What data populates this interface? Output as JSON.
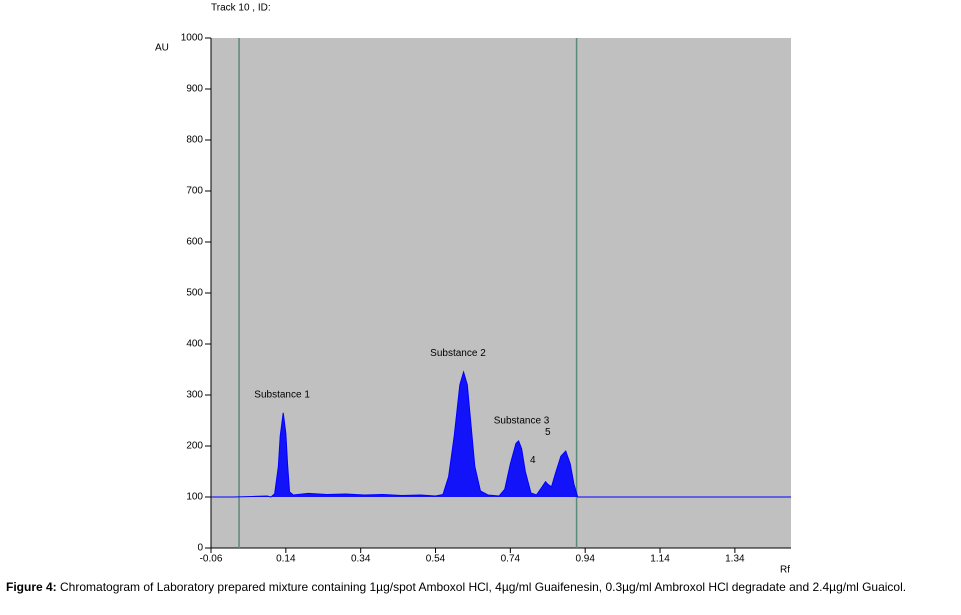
{
  "chart_data": {
    "type": "line",
    "title": "Track  10 , ID:",
    "y_label": "AU",
    "x_label": "Rf",
    "x": [
      -0.06,
      0.0,
      0.05,
      0.09,
      0.1,
      0.11,
      0.12,
      0.125,
      0.133,
      0.14,
      0.145,
      0.15,
      0.16,
      0.2,
      0.25,
      0.3,
      0.35,
      0.4,
      0.45,
      0.5,
      0.54,
      0.56,
      0.575,
      0.59,
      0.605,
      0.615,
      0.625,
      0.635,
      0.645,
      0.66,
      0.68,
      0.71,
      0.725,
      0.74,
      0.755,
      0.762,
      0.77,
      0.78,
      0.795,
      0.81,
      0.825,
      0.834,
      0.84,
      0.85,
      0.86,
      0.875,
      0.888,
      0.9,
      0.91,
      0.92,
      1.0,
      1.2,
      1.49
    ],
    "series": [
      {
        "color": "#0000ff",
        "values": [
          100,
          100,
          101,
          102,
          100,
          106,
          160,
          220,
          265,
          225,
          160,
          110,
          104,
          107,
          105,
          106,
          104,
          105,
          103,
          104,
          102,
          105,
          140,
          220,
          320,
          345,
          320,
          240,
          160,
          112,
          104,
          102,
          115,
          165,
          205,
          210,
          195,
          150,
          108,
          104,
          120,
          130,
          125,
          120,
          145,
          180,
          190,
          165,
          125,
          100,
          100,
          100,
          100
        ]
      }
    ],
    "vlines": [
      0.015,
      0.917
    ],
    "vline_color": "#5a8a7a",
    "plot_bg": "#c0c0c0",
    "annotations": [
      {
        "text": "Substance 1",
        "x": 0.13,
        "y": 300
      },
      {
        "text": "Substance 2",
        "x": 0.6,
        "y": 382
      },
      {
        "text": "Substance 3",
        "x": 0.77,
        "y": 249
      },
      {
        "text": "4",
        "x": 0.8,
        "y": 172
      },
      {
        "text": "5",
        "x": 0.84,
        "y": 227
      }
    ],
    "xlim": [
      -0.06,
      1.49
    ],
    "ylim": [
      0,
      1000
    ],
    "xticks": [
      -0.06,
      0.14,
      0.34,
      0.54,
      0.74,
      0.94,
      1.14,
      1.34
    ],
    "yticks": [
      0,
      100,
      200,
      300,
      400,
      500,
      600,
      700,
      800,
      900,
      1000
    ]
  },
  "caption": {
    "label": "Figure 4:",
    "text": "Chromatogram of Laboratory prepared mixture containing 1µg/spot Amboxol HCl, 4µg/ml Guaifenesin, 0.3µg/ml Ambroxol HCl degradate and 2.4µg/ml Guaicol."
  }
}
